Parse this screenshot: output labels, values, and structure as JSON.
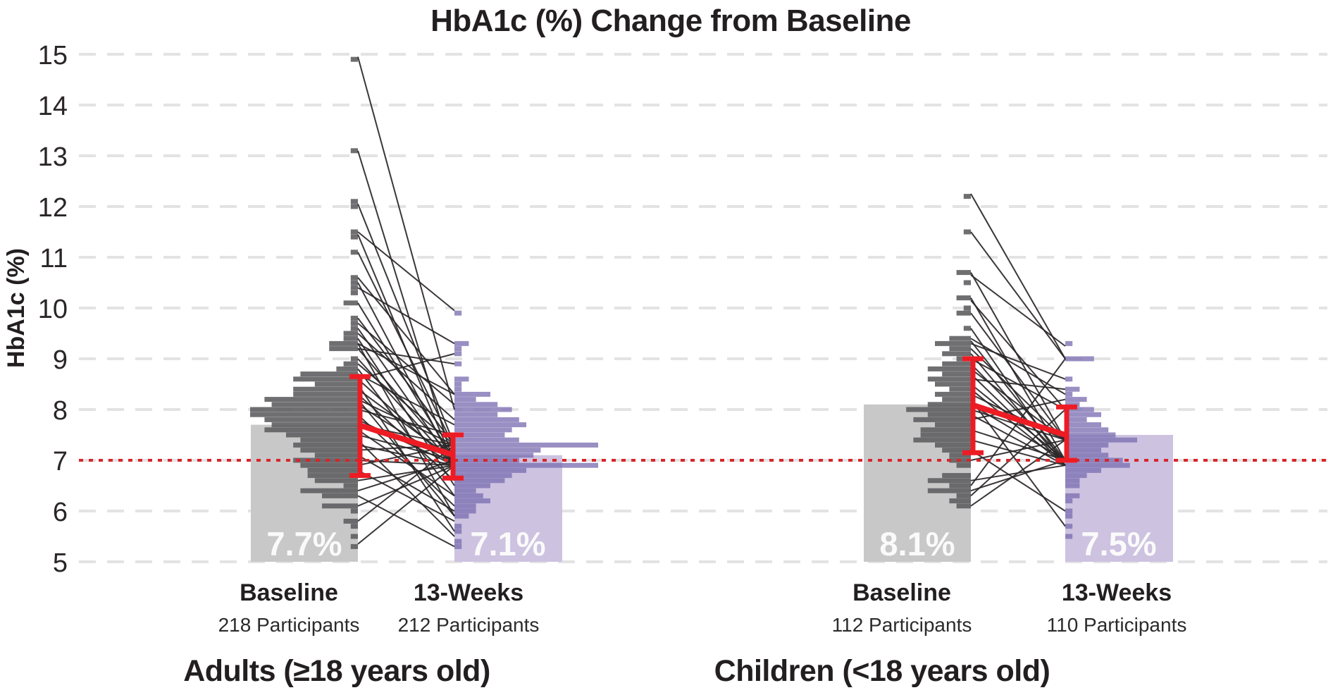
{
  "title": "HbA1c (%) Change from Baseline",
  "y_axis": {
    "label": "HbA1c (%)",
    "ticks": [
      15,
      14,
      13,
      12,
      11,
      10,
      9,
      8,
      7,
      6,
      5
    ],
    "min": 5,
    "max": 15
  },
  "reference_line": {
    "value": 7
  },
  "colors": {
    "mean_bar_gray": "#c9c8c8",
    "mean_bar_purple": "#cdc2e0",
    "histogram_gray": "#6d6c6d",
    "histogram_purple": "#9187bd",
    "red_accent": "#ed1c24",
    "reference_red": "#d7262c",
    "pair_line": "#2a2628",
    "gridline": "#e3e3e3",
    "text": "#231f20"
  },
  "chart_data": {
    "type": "paired-change-histogram",
    "title": "HbA1c (%) Change from Baseline",
    "ylabel": "HbA1c (%)",
    "ylim": [
      5,
      15
    ],
    "grid": true,
    "reference_value": 7,
    "panels": [
      {
        "name": "Adults (≥18 years old)",
        "columns": [
          {
            "label": "Baseline",
            "participants": 218,
            "participants_label": "218 Participants",
            "mean": 7.7,
            "mean_label": "7.7%",
            "error_low": 6.7,
            "error_high": 8.65,
            "histogram": [
              [
                14.9,
                1
              ],
              [
                13.1,
                1
              ],
              [
                12.1,
                1
              ],
              [
                12.0,
                1
              ],
              [
                11.5,
                1
              ],
              [
                11.4,
                1
              ],
              [
                11.1,
                1
              ],
              [
                10.6,
                1
              ],
              [
                10.5,
                1
              ],
              [
                10.4,
                1
              ],
              [
                10.3,
                1
              ],
              [
                10.1,
                2
              ],
              [
                9.8,
                1
              ],
              [
                9.7,
                1
              ],
              [
                9.6,
                1
              ],
              [
                9.5,
                2
              ],
              [
                9.4,
                2
              ],
              [
                9.3,
                4
              ],
              [
                9.2,
                4
              ],
              [
                9.0,
                1
              ],
              [
                8.9,
                2
              ],
              [
                8.8,
                3
              ],
              [
                8.7,
                8
              ],
              [
                8.6,
                9
              ],
              [
                8.5,
                6
              ],
              [
                8.4,
                9
              ],
              [
                8.3,
                9
              ],
              [
                8.2,
                13
              ],
              [
                8.1,
                12
              ],
              [
                8.0,
                15
              ],
              [
                7.9,
                15
              ],
              [
                7.8,
                13
              ],
              [
                7.7,
                12
              ],
              [
                7.6,
                13
              ],
              [
                7.5,
                10
              ],
              [
                7.4,
                8
              ],
              [
                7.3,
                9
              ],
              [
                7.2,
                8
              ],
              [
                7.1,
                6
              ],
              [
                7.0,
                9
              ],
              [
                6.9,
                8
              ],
              [
                6.8,
                7
              ],
              [
                6.7,
                7
              ],
              [
                6.6,
                6
              ],
              [
                6.5,
                2
              ],
              [
                6.4,
                8
              ],
              [
                6.3,
                5
              ],
              [
                6.1,
                5
              ],
              [
                6.0,
                1
              ],
              [
                5.8,
                2
              ],
              [
                5.7,
                1
              ],
              [
                5.5,
                1
              ],
              [
                5.3,
                1
              ]
            ]
          },
          {
            "label": "13-Weeks",
            "participants": 212,
            "participants_label": "212 Participants",
            "mean": 7.1,
            "mean_label": "7.1%",
            "error_low": 6.65,
            "error_high": 7.5,
            "histogram": [
              [
                9.9,
                1
              ],
              [
                9.3,
                2
              ],
              [
                9.2,
                1
              ],
              [
                9.1,
                1
              ],
              [
                8.9,
                1
              ],
              [
                8.6,
                2
              ],
              [
                8.5,
                1
              ],
              [
                8.4,
                1
              ],
              [
                8.3,
                5
              ],
              [
                8.2,
                3
              ],
              [
                8.1,
                6
              ],
              [
                8.0,
                8
              ],
              [
                7.9,
                6
              ],
              [
                7.8,
                9
              ],
              [
                7.7,
                10
              ],
              [
                7.6,
                8
              ],
              [
                7.5,
                7
              ],
              [
                7.4,
                9
              ],
              [
                7.3,
                20
              ],
              [
                7.2,
                12
              ],
              [
                7.1,
                11
              ],
              [
                7.0,
                9
              ],
              [
                6.9,
                20
              ],
              [
                6.8,
                10
              ],
              [
                6.7,
                8
              ],
              [
                6.6,
                7
              ],
              [
                6.5,
                5
              ],
              [
                6.4,
                3
              ],
              [
                6.3,
                4
              ],
              [
                6.2,
                5
              ],
              [
                6.1,
                3
              ],
              [
                6.0,
                3
              ],
              [
                5.9,
                2
              ],
              [
                5.7,
                1
              ],
              [
                5.6,
                1
              ],
              [
                5.4,
                1
              ],
              [
                5.3,
                1
              ]
            ]
          }
        ],
        "pairs": [
          [
            14.95,
            8.0
          ],
          [
            13.1,
            6.9
          ],
          [
            12.05,
            7.3
          ],
          [
            11.5,
            9.95
          ],
          [
            11.45,
            6.9
          ],
          [
            11.1,
            7.25
          ],
          [
            10.6,
            8.3
          ],
          [
            10.5,
            6.9
          ],
          [
            10.4,
            9.3
          ],
          [
            10.1,
            7.0
          ],
          [
            9.8,
            7.3
          ],
          [
            9.7,
            8.1
          ],
          [
            9.6,
            6.9
          ],
          [
            9.5,
            7.8
          ],
          [
            9.4,
            6.5
          ],
          [
            9.3,
            8.3
          ],
          [
            9.3,
            5.9
          ],
          [
            9.2,
            7.0
          ],
          [
            9.2,
            8.9
          ],
          [
            9.0,
            6.9
          ],
          [
            8.9,
            7.3
          ],
          [
            8.8,
            6.3
          ],
          [
            8.7,
            7.7
          ],
          [
            8.6,
            6.9
          ],
          [
            8.6,
            9.1
          ],
          [
            8.5,
            5.6
          ],
          [
            8.4,
            7.0
          ],
          [
            8.3,
            6.6
          ],
          [
            8.2,
            7.3
          ],
          [
            8.2,
            5.9
          ],
          [
            8.1,
            6.9
          ],
          [
            8.0,
            7.5
          ],
          [
            7.9,
            6.1
          ],
          [
            7.8,
            6.9
          ],
          [
            7.7,
            7.3
          ],
          [
            7.6,
            6.3
          ],
          [
            7.5,
            7.0
          ],
          [
            7.4,
            5.5
          ],
          [
            7.3,
            6.9
          ],
          [
            7.2,
            7.3
          ],
          [
            7.1,
            6.0
          ],
          [
            7.0,
            6.9
          ],
          [
            6.9,
            7.3
          ],
          [
            6.8,
            5.8
          ],
          [
            6.6,
            6.9
          ],
          [
            6.4,
            7.0
          ],
          [
            6.3,
            5.3
          ],
          [
            6.1,
            6.9
          ],
          [
            5.8,
            7.3
          ],
          [
            5.35,
            6.9
          ]
        ]
      },
      {
        "name": "Children (<18 years old)",
        "columns": [
          {
            "label": "Baseline",
            "participants": 112,
            "participants_label": "112 Participants",
            "mean": 8.1,
            "mean_label": "8.1%",
            "error_low": 7.15,
            "error_high": 9.0,
            "histogram": [
              [
                12.2,
                1
              ],
              [
                11.5,
                1
              ],
              [
                10.7,
                2
              ],
              [
                10.5,
                1
              ],
              [
                10.2,
                2
              ],
              [
                10.0,
                1
              ],
              [
                9.9,
                2
              ],
              [
                9.6,
                1
              ],
              [
                9.4,
                3
              ],
              [
                9.3,
                5
              ],
              [
                9.2,
                3
              ],
              [
                9.1,
                4
              ],
              [
                9.0,
                2
              ],
              [
                8.9,
                4
              ],
              [
                8.8,
                6
              ],
              [
                8.7,
                4
              ],
              [
                8.6,
                6
              ],
              [
                8.5,
                5
              ],
              [
                8.4,
                3
              ],
              [
                8.3,
                5
              ],
              [
                8.2,
                4
              ],
              [
                8.1,
                6
              ],
              [
                8.0,
                9
              ],
              [
                7.9,
                6
              ],
              [
                7.8,
                8
              ],
              [
                7.7,
                5
              ],
              [
                7.6,
                7
              ],
              [
                7.5,
                7
              ],
              [
                7.4,
                8
              ],
              [
                7.3,
                5
              ],
              [
                7.2,
                4
              ],
              [
                7.1,
                3
              ],
              [
                7.0,
                3
              ],
              [
                6.9,
                2
              ],
              [
                6.7,
                4
              ],
              [
                6.6,
                6
              ],
              [
                6.5,
                3
              ],
              [
                6.4,
                6
              ],
              [
                6.3,
                2
              ],
              [
                6.2,
                3
              ],
              [
                6.1,
                2
              ]
            ]
          },
          {
            "label": "13-Weeks",
            "participants": 110,
            "participants_label": "110 Participants",
            "mean": 7.5,
            "mean_label": "7.5%",
            "error_low": 7.0,
            "error_high": 8.05,
            "histogram": [
              [
                9.3,
                1
              ],
              [
                9.0,
                4
              ],
              [
                8.6,
                1
              ],
              [
                8.4,
                2
              ],
              [
                8.3,
                1
              ],
              [
                8.2,
                3
              ],
              [
                8.1,
                2
              ],
              [
                8.0,
                4
              ],
              [
                7.9,
                5
              ],
              [
                7.8,
                3
              ],
              [
                7.7,
                5
              ],
              [
                7.6,
                6
              ],
              [
                7.5,
                7
              ],
              [
                7.4,
                10
              ],
              [
                7.3,
                6
              ],
              [
                7.2,
                5
              ],
              [
                7.1,
                6
              ],
              [
                7.0,
                8
              ],
              [
                6.9,
                9
              ],
              [
                6.8,
                5
              ],
              [
                6.7,
                3
              ],
              [
                6.6,
                2
              ],
              [
                6.5,
                2
              ],
              [
                6.3,
                2
              ],
              [
                6.2,
                1
              ],
              [
                6.0,
                1
              ],
              [
                5.9,
                1
              ],
              [
                5.7,
                1
              ],
              [
                5.5,
                1
              ]
            ]
          }
        ],
        "pairs": [
          [
            12.25,
            9.0
          ],
          [
            11.5,
            9.0
          ],
          [
            10.7,
            7.4
          ],
          [
            10.65,
            9.25
          ],
          [
            10.2,
            7.0
          ],
          [
            10.15,
            8.0
          ],
          [
            9.9,
            7.4
          ],
          [
            9.6,
            6.9
          ],
          [
            9.4,
            8.3
          ],
          [
            9.35,
            7.0
          ],
          [
            9.3,
            8.6
          ],
          [
            9.2,
            7.4
          ],
          [
            9.1,
            6.9
          ],
          [
            9.0,
            8.0
          ],
          [
            8.9,
            7.0
          ],
          [
            8.8,
            7.4
          ],
          [
            8.7,
            6.9
          ],
          [
            8.6,
            8.4
          ],
          [
            8.5,
            7.0
          ],
          [
            8.4,
            6.9
          ],
          [
            8.3,
            7.4
          ],
          [
            8.2,
            5.7
          ],
          [
            8.1,
            7.0
          ],
          [
            8.0,
            7.4
          ],
          [
            7.9,
            6.9
          ],
          [
            7.8,
            8.2
          ],
          [
            7.6,
            7.0
          ],
          [
            7.4,
            6.9
          ],
          [
            7.2,
            6.0
          ],
          [
            7.0,
            7.4
          ],
          [
            6.6,
            6.9
          ],
          [
            6.5,
            9.0
          ],
          [
            6.4,
            7.0
          ],
          [
            6.3,
            8.0
          ],
          [
            6.1,
            7.4
          ]
        ]
      }
    ]
  }
}
